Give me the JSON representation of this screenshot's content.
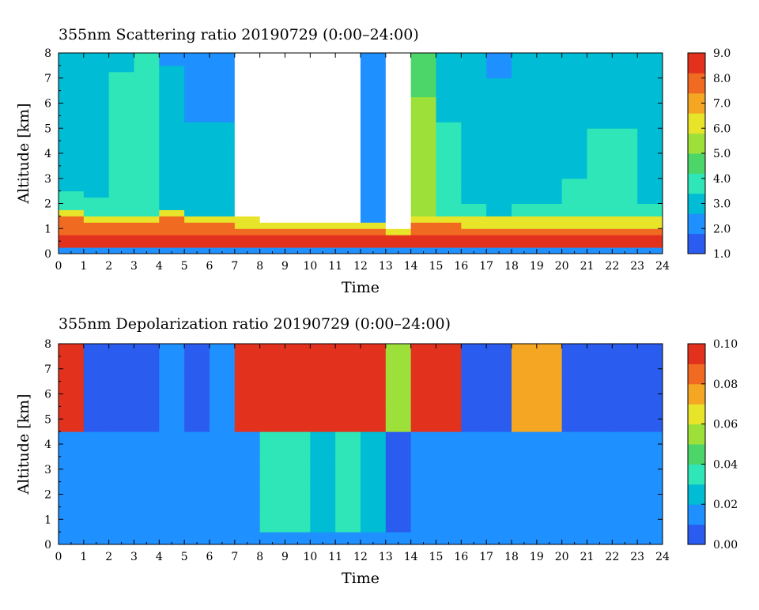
{
  "colors": {
    "colormap": [
      "#2a5cf0",
      "#1e90ff",
      "#00bcd4",
      "#2ee6b8",
      "#4cd66a",
      "#9ee03a",
      "#e8e42a",
      "#f5a623",
      "#f06a22",
      "#e2321e"
    ],
    "background": "#ffffff",
    "axes": "#000000"
  },
  "chart_data": [
    {
      "type": "heatmap",
      "title": "355nm Scattering ratio  20190729 (0:00–24:00)",
      "xlabel": "Time",
      "ylabel": "Altitude [km]",
      "xlim": [
        0,
        24
      ],
      "ylim": [
        0,
        8
      ],
      "x_ticks": [
        "0",
        "1",
        "2",
        "3",
        "4",
        "5",
        "6",
        "7",
        "8",
        "9",
        "10",
        "11",
        "12",
        "13",
        "14",
        "15",
        "16",
        "17",
        "18",
        "19",
        "20",
        "21",
        "22",
        "23",
        "24"
      ],
      "y_ticks": [
        "0",
        "1",
        "2",
        "3",
        "4",
        "5",
        "6",
        "7",
        "8"
      ],
      "colorbar": {
        "range": [
          1.0,
          9.0
        ],
        "ticks": [
          "1.0",
          "2.0",
          "3.0",
          "4.0",
          "5.0",
          "6.0",
          "7.0",
          "8.0",
          "9.0"
        ]
      },
      "time_hours": [
        0,
        1,
        2,
        3,
        4,
        5,
        6,
        7,
        8,
        9,
        10,
        11,
        12,
        13,
        14,
        15,
        16,
        17,
        18,
        19,
        20,
        21,
        22,
        23
      ],
      "boundary_layer_top_km": [
        1.4,
        1.3,
        1.3,
        1.3,
        1.4,
        1.3,
        1.2,
        1.1,
        1.0,
        1.0,
        1.0,
        1.0,
        1.0,
        0.8,
        1.2,
        1.2,
        1.1,
        1.1,
        1.1,
        1.1,
        1.1,
        1.1,
        1.1,
        1.1
      ],
      "column_mean_ratio": [
        3.5,
        3.5,
        4.0,
        4.2,
        3.2,
        3.0,
        3.0,
        1.0,
        1.0,
        1.0,
        1.0,
        1.0,
        2.5,
        1.0,
        5.5,
        3.8,
        3.5,
        3.2,
        3.5,
        3.5,
        3.6,
        3.8,
        3.8,
        3.5
      ]
    },
    {
      "type": "heatmap",
      "title": "355nm Depolarization ratio  20190729 (0:00–24:00)",
      "xlabel": "Time",
      "ylabel": "Altitude [km]",
      "xlim": [
        0,
        24
      ],
      "ylim": [
        0,
        8
      ],
      "x_ticks": [
        "0",
        "1",
        "2",
        "3",
        "4",
        "5",
        "6",
        "7",
        "8",
        "9",
        "10",
        "11",
        "12",
        "13",
        "14",
        "15",
        "16",
        "17",
        "18",
        "19",
        "20",
        "21",
        "22",
        "23",
        "24"
      ],
      "y_ticks": [
        "0",
        "1",
        "2",
        "3",
        "4",
        "5",
        "6",
        "7",
        "8"
      ],
      "colorbar": {
        "range": [
          0.0,
          0.1
        ],
        "ticks": [
          "0.00",
          "0.02",
          "0.04",
          "0.06",
          "0.08",
          "0.10"
        ]
      },
      "time_hours": [
        0,
        1,
        2,
        3,
        4,
        5,
        6,
        7,
        8,
        9,
        10,
        11,
        12,
        13,
        14,
        15,
        16,
        17,
        18,
        19,
        20,
        21,
        22,
        23
      ],
      "upper_layer_ratio": [
        0.09,
        0.01,
        0.01,
        0.01,
        0.015,
        0.01,
        0.02,
        0.09,
        0.09,
        0.09,
        0.09,
        0.09,
        0.09,
        0.05,
        0.09,
        0.09,
        0.01,
        0.01,
        0.08,
        0.08,
        0.01,
        0.01,
        0.01,
        0.01
      ],
      "lower_layer_ratio": [
        0.015,
        0.012,
        0.012,
        0.012,
        0.015,
        0.012,
        0.012,
        0.02,
        0.03,
        0.03,
        0.025,
        0.03,
        0.025,
        0.01,
        0.015,
        0.015,
        0.012,
        0.012,
        0.012,
        0.012,
        0.012,
        0.012,
        0.012,
        0.012
      ]
    }
  ]
}
